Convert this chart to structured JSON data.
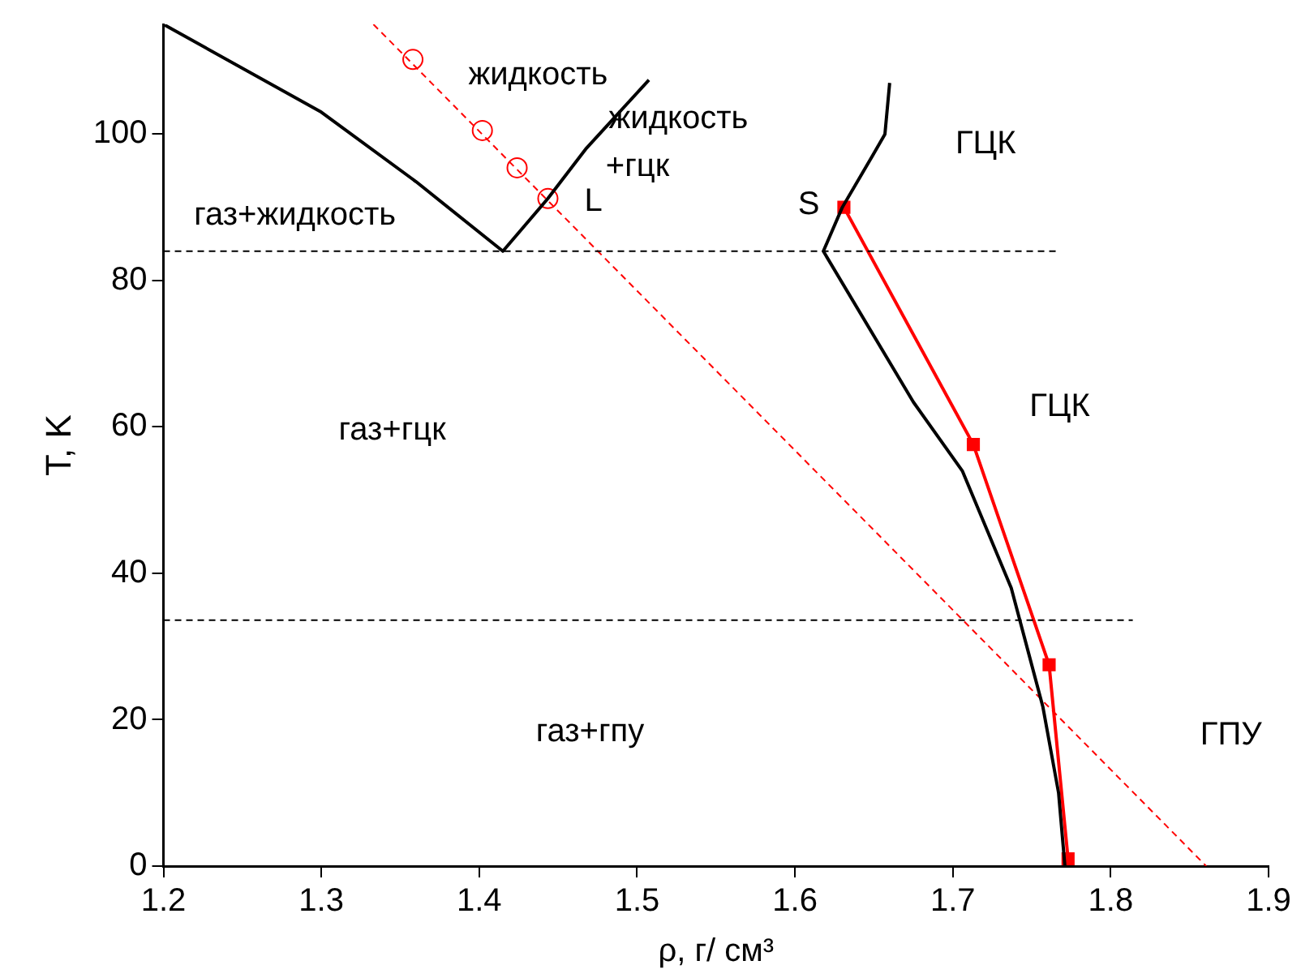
{
  "chart_data": {
    "type": "line",
    "xlabel": "ρ, г/ см³",
    "ylabel": "T, K",
    "xlim": [
      1.2,
      1.9
    ],
    "ylim": [
      0,
      115
    ],
    "xticks": [
      1.2,
      1.3,
      1.4,
      1.5,
      1.6,
      1.7,
      1.8,
      1.9
    ],
    "yticks": [
      0,
      20,
      40,
      60,
      80,
      100
    ],
    "grid": false,
    "legend": false,
    "series": [
      {
        "type": "line",
        "color": "#000000",
        "marker": "none",
        "line_style": "solid",
        "x": [
          1.2,
          1.3,
          1.36,
          1.415,
          1.4435,
          1.468,
          1.5075
        ],
        "values": [
          115,
          103,
          93.5,
          84,
          91.2,
          98.1,
          107.4
        ]
      },
      {
        "type": "line",
        "color": "#000000",
        "marker": "none",
        "line_style": "solid",
        "x": [
          1.66,
          1.657,
          1.649,
          1.63,
          1.618,
          1.675,
          1.706,
          1.737,
          1.757,
          1.767,
          1.771
        ],
        "values": [
          107,
          100,
          97,
          90,
          84,
          63.4,
          54,
          38,
          21.8,
          10,
          0
        ]
      },
      {
        "type": "line",
        "color": "#000000",
        "marker": "none",
        "line_style": "dashed",
        "x": [
          1.2,
          1.767
        ],
        "values": [
          84,
          84
        ]
      },
      {
        "type": "line",
        "color": "#000000",
        "marker": "none",
        "line_style": "dashed",
        "x": [
          1.2,
          1.814
        ],
        "values": [
          33.6,
          33.6
        ]
      },
      {
        "type": "line",
        "color": "#ff0000",
        "marker": "none",
        "line_style": "dashed",
        "x": [
          1.333,
          1.8605
        ],
        "values": [
          115,
          0
        ]
      },
      {
        "type": "scatter",
        "color": "#ff0000",
        "marker": "circle",
        "x": [
          1.358,
          1.402,
          1.424,
          1.4435
        ],
        "values": [
          110.2,
          100.5,
          95.4,
          91.2
        ]
      },
      {
        "type": "line",
        "color": "#ff0000",
        "marker": "square",
        "line_style": "solid",
        "x": [
          1.631,
          1.713,
          1.761,
          1.773
        ],
        "values": [
          90,
          57.6,
          27.5,
          1
        ]
      }
    ],
    "annotations": [
      "жидкость",
      "жидкость",
      "+гцк",
      "ГЦК",
      "газ+жидкость",
      "L",
      "S",
      "газ+гцк",
      "ГЦК",
      "газ+гпу",
      "ГПУ"
    ]
  }
}
